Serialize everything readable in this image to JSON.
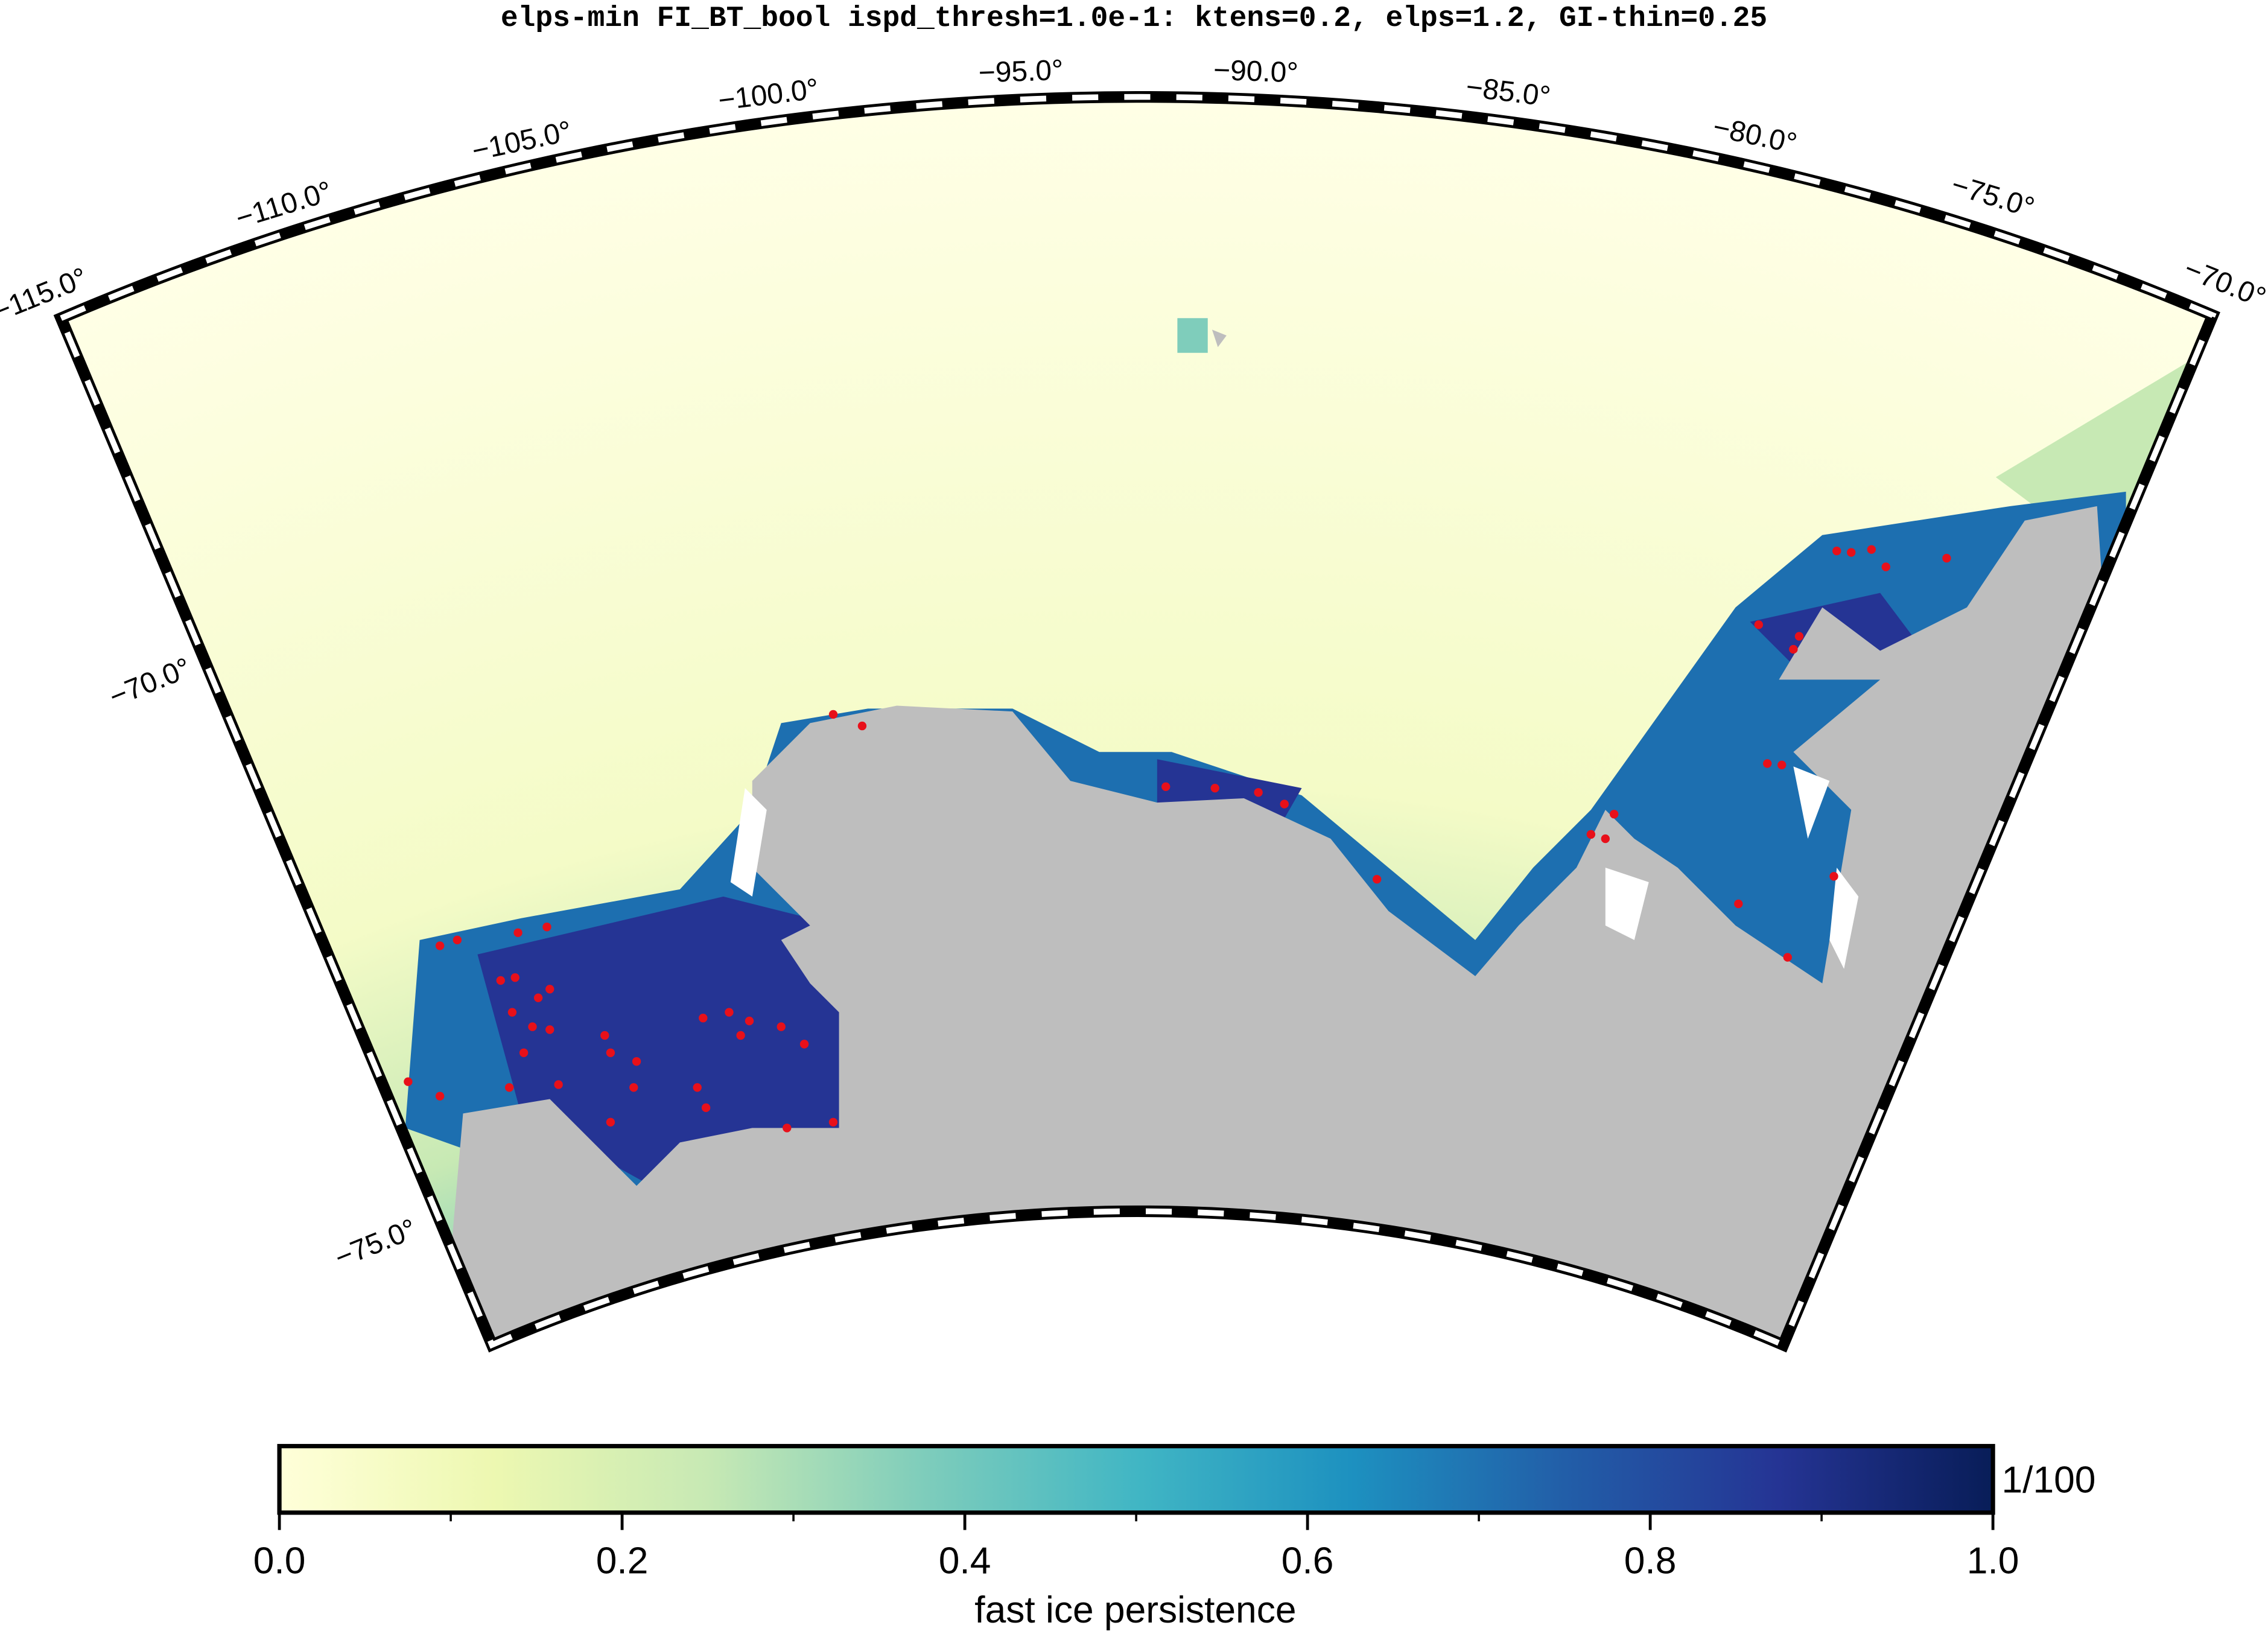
{
  "title": "elps-min FI_BT_bool ispd_thresh=1.0e-1: ktens=0.2, elps=1.2, GI-thin=0.25",
  "map": {
    "lon_labels": [
      "−115.0°",
      "−110.0°",
      "−105.0°",
      "−100.0°",
      "−95.0°",
      "−90.0°",
      "−85.0°",
      "−80.0°",
      "−75.0°",
      "−70.0°"
    ],
    "lat_labels": [
      "−70.0°",
      "−75.0°"
    ]
  },
  "colorbar": {
    "lim": [
      0,
      1
    ],
    "ticks": [
      {
        "value": 0,
        "label": "0.0"
      },
      {
        "value": 0.2,
        "label": "0.2"
      },
      {
        "value": 0.4,
        "label": "0.4"
      },
      {
        "value": 0.6,
        "label": "0.6"
      },
      {
        "value": 0.8,
        "label": "0.8"
      },
      {
        "value": 1,
        "label": "1.0"
      }
    ],
    "minor_ticks": [
      0.1,
      0.3,
      0.5,
      0.7,
      0.9
    ],
    "colormap": [
      "#ffffd9",
      "#edf8b1",
      "#c7e9b4",
      "#7fcdbb",
      "#41b6c4",
      "#1d91c0",
      "#225ea8",
      "#253494",
      "#081d58"
    ],
    "unit_note": "1/100",
    "label": "fast ice persistence"
  }
}
